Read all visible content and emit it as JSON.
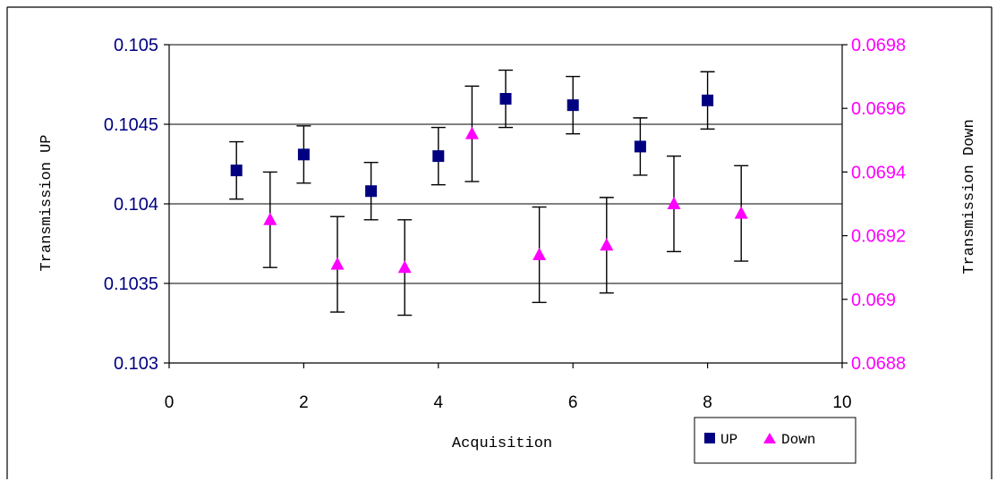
{
  "chart_data": {
    "type": "scatter",
    "title": "",
    "xlabel": "Acquisition",
    "ylabel_left": "Transmission UP",
    "ylabel_right": "Transmission Down",
    "xlim": [
      0,
      10
    ],
    "ylim_left": [
      0.103,
      0.105
    ],
    "ylim_right": [
      0.0688,
      0.0698
    ],
    "x_ticks": [
      "0",
      "2",
      "4",
      "6",
      "8",
      "10"
    ],
    "y_left_ticks": [
      "0.103",
      "0.1035",
      "0.104",
      "0.1045",
      "0.105"
    ],
    "y_right_ticks": [
      "0.0688",
      "0.069",
      "0.0692",
      "0.0694",
      "0.0696",
      "0.0698"
    ],
    "grid": "horizontal",
    "legend_position": "bottom-right",
    "colors": {
      "up": "#000080",
      "down": "#ff00ff",
      "axis_left_text": "#000080",
      "axis_right_text": "#ff00ff"
    },
    "series": [
      {
        "name": "UP",
        "axis": "left",
        "marker": "square",
        "x": [
          1,
          2,
          3,
          4,
          5,
          6,
          7,
          8
        ],
        "y": [
          0.10421,
          0.10431,
          0.10408,
          0.1043,
          0.10466,
          0.10462,
          0.10436,
          0.10465
        ],
        "err_low": [
          0.10403,
          0.10413,
          0.1039,
          0.10412,
          0.10448,
          0.10444,
          0.10418,
          0.10447
        ],
        "err_high": [
          0.10439,
          0.10449,
          0.10426,
          0.10448,
          0.10484,
          0.1048,
          0.10454,
          0.10483
        ]
      },
      {
        "name": "Down",
        "axis": "right",
        "marker": "triangle",
        "x": [
          1.5,
          2.5,
          3.5,
          4.5,
          5.5,
          6.5,
          7.5,
          8.5
        ],
        "y": [
          0.06925,
          0.06911,
          0.0691,
          0.06952,
          0.06914,
          0.06917,
          0.0693,
          0.06927
        ],
        "err_low": [
          0.0691,
          0.06896,
          0.06895,
          0.06937,
          0.06899,
          0.06902,
          0.06915,
          0.06912
        ],
        "err_high": [
          0.0694,
          0.06926,
          0.06925,
          0.06967,
          0.06929,
          0.06932,
          0.06945,
          0.06942
        ]
      }
    ]
  }
}
